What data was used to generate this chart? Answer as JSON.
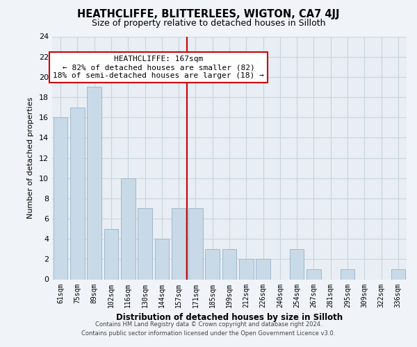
{
  "title": "HEATHCLIFFE, BLITTERLEES, WIGTON, CA7 4JJ",
  "subtitle": "Size of property relative to detached houses in Silloth",
  "xlabel": "Distribution of detached houses by size in Silloth",
  "ylabel": "Number of detached properties",
  "footnote1": "Contains HM Land Registry data © Crown copyright and database right 2024.",
  "footnote2": "Contains public sector information licensed under the Open Government Licence v3.0.",
  "bar_labels": [
    "61sqm",
    "75sqm",
    "89sqm",
    "102sqm",
    "116sqm",
    "130sqm",
    "144sqm",
    "157sqm",
    "171sqm",
    "185sqm",
    "199sqm",
    "212sqm",
    "226sqm",
    "240sqm",
    "254sqm",
    "267sqm",
    "281sqm",
    "295sqm",
    "309sqm",
    "322sqm",
    "336sqm"
  ],
  "bar_values": [
    16,
    17,
    19,
    5,
    10,
    7,
    4,
    7,
    7,
    3,
    3,
    2,
    2,
    0,
    3,
    1,
    0,
    1,
    0,
    0,
    1
  ],
  "bar_color": "#c8d9e8",
  "bar_edge_color": "#a0b8cc",
  "vline_index": 8,
  "vline_color": "#cc0000",
  "annotation_title": "HEATHCLIFFE: 167sqm",
  "annotation_line1": "← 82% of detached houses are smaller (82)",
  "annotation_line2": "18% of semi-detached houses are larger (18) →",
  "annotation_box_color": "#ffffff",
  "annotation_box_edge": "#cc0000",
  "ylim": [
    0,
    24
  ],
  "yticks": [
    0,
    2,
    4,
    6,
    8,
    10,
    12,
    14,
    16,
    18,
    20,
    22,
    24
  ],
  "background_color": "#f0f4f8",
  "plot_bg_color": "#e8eef4",
  "grid_color": "#c8d4dc",
  "title_fontsize": 10.5,
  "subtitle_fontsize": 9
}
